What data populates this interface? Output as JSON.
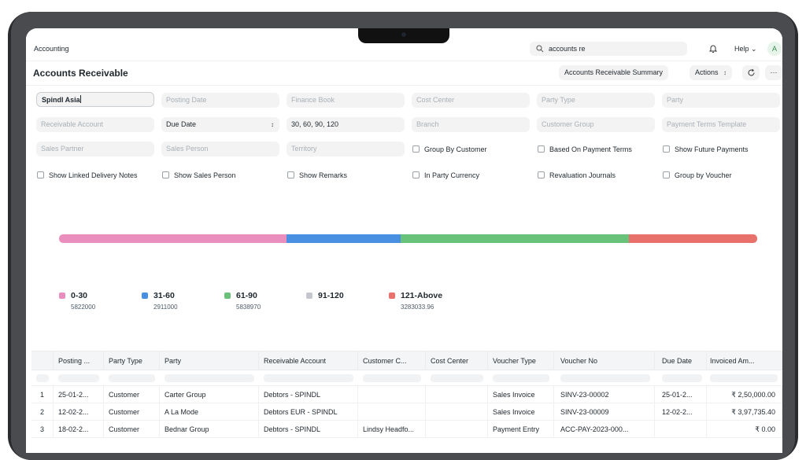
{
  "navbar": {
    "breadcrumb": "Accounting",
    "search_value": "accounts re",
    "help_label": "Help",
    "avatar_initial": "A"
  },
  "page": {
    "title": "Accounts Receivable",
    "summary_button": "Accounts Receivable Summary",
    "actions_button": "Actions",
    "refresh_icon": "refresh-icon",
    "more_label": "···"
  },
  "filters": {
    "company": "Spindl Asia",
    "posting_date": "Posting Date",
    "finance_book": "Finance Book",
    "cost_center": "Cost Center",
    "party_type": "Party Type",
    "party": "Party",
    "receivable_account": "Receivable Account",
    "ageing_based_on": "Due Date",
    "range": "30, 60, 90, 120",
    "branch": "Branch",
    "customer_group": "Customer Group",
    "payment_terms_template": "Payment Terms Template",
    "sales_partner": "Sales Partner",
    "sales_person": "Sales Person",
    "territory": "Territory",
    "checkboxes": [
      "Group By Customer",
      "Based On Payment Terms",
      "Show Future Payments",
      "Show Linked Delivery Notes",
      "Show Sales Person",
      "Show Remarks",
      "In Party Currency",
      "Revaluation Journals",
      "Group by Voucher"
    ]
  },
  "chart_data": {
    "type": "bar",
    "orientation": "stacked-percentage",
    "categories": [
      "0-30",
      "31-60",
      "61-90",
      "91-120",
      "121-Above"
    ],
    "values": [
      5822000,
      2911000,
      5838970,
      0,
      3283033.96
    ],
    "value_labels": [
      "5822000",
      "2911000",
      "5838970",
      "",
      "3283033.96"
    ],
    "colors": [
      "#ea8fbd",
      "#4a90e2",
      "#68c27a",
      "#c4c8cc",
      "#e8716b"
    ],
    "legend": "bottom-left"
  },
  "table": {
    "columns": [
      "Posting ...",
      "Party Type",
      "Party",
      "Receivable Account",
      "Customer C...",
      "Cost Center",
      "Voucher Type",
      "Voucher No",
      "Due Date",
      "Invoiced Am..."
    ],
    "rows": [
      {
        "idx": "1",
        "cells": [
          "25-01-2...",
          "Customer",
          "Carter Group",
          "Debtors - SPINDL",
          "",
          "",
          "Sales Invoice",
          "SINV-23-00002",
          "25-01-2...",
          "₹ 2,50,000.00"
        ]
      },
      {
        "idx": "2",
        "cells": [
          "12-02-2...",
          "Customer",
          "A La Mode",
          "Debtors EUR - SPINDL",
          "",
          "",
          "Sales Invoice",
          "SINV-23-00009",
          "12-02-2...",
          "₹ 3,97,735.40"
        ]
      },
      {
        "idx": "3",
        "cells": [
          "18-02-2...",
          "Customer",
          "Bednar Group",
          "Debtors - SPINDL",
          "Lindsy Headfo...",
          "",
          "Payment Entry",
          "ACC-PAY-2023-000...",
          "",
          "₹ 0.00"
        ]
      }
    ]
  }
}
